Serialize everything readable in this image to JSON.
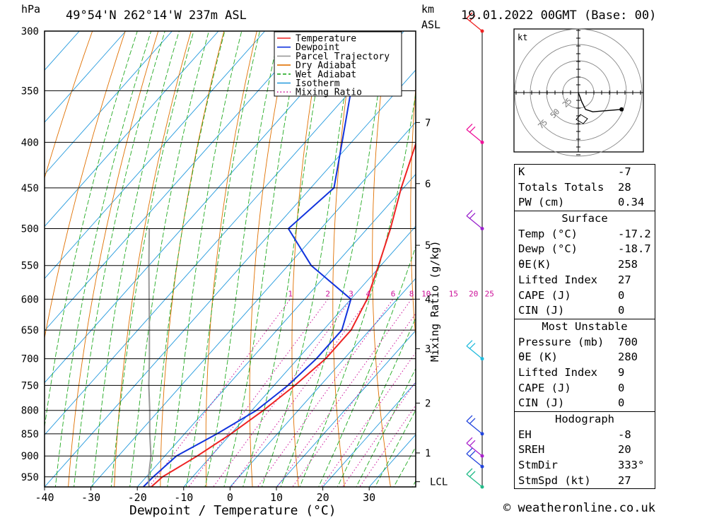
{
  "header": {
    "hpa_unit": "hPa",
    "location": "49°54'N  262°14'W  237m  ASL",
    "km_unit": "km",
    "asl_unit": "ASL",
    "datetime": "19.01.2022  00GMT  (Base: 00)"
  },
  "chart_data": {
    "type": "skew-t log-p",
    "xlabel": "Dewpoint / Temperature (°C)",
    "ylabel_left": "hPa",
    "ylabel_right": "Mixing Ratio (g/kg)",
    "pressure_levels": [
      300,
      350,
      400,
      450,
      500,
      550,
      600,
      650,
      700,
      750,
      800,
      850,
      900,
      950
    ],
    "temperature_ticks": [
      -40,
      -30,
      -20,
      -10,
      0,
      10,
      20,
      30
    ],
    "ylim_hpa": [
      975,
      300
    ],
    "xlim_degC_at_bottom": [
      -40,
      40
    ],
    "height_ticks_km": [
      {
        "label": "7",
        "p": 380
      },
      {
        "label": "6",
        "p": 445
      },
      {
        "label": "5",
        "p": 522
      },
      {
        "label": "4",
        "p": 600
      },
      {
        "label": "3",
        "p": 682
      },
      {
        "label": "2",
        "p": 785
      },
      {
        "label": "1",
        "p": 893
      }
    ],
    "lcl_label": "LCL",
    "lcl_p": 962,
    "mixing_ratio_labels": [
      "1",
      "2",
      "3",
      "4",
      "6",
      "8",
      "10",
      "15",
      "20",
      "25"
    ],
    "mixing_ratio_values": [
      1,
      2,
      3,
      4,
      6,
      8,
      10,
      15,
      20,
      25
    ],
    "mixing_ratio_label_p": 600,
    "legend": [
      {
        "name": "Temperature",
        "color": "#ee2222",
        "style": "solid"
      },
      {
        "name": "Dewpoint",
        "color": "#1133dd",
        "style": "solid"
      },
      {
        "name": "Parcel Trajectory",
        "color": "#999999",
        "style": "solid"
      },
      {
        "name": "Dry Adiabat",
        "color": "#e07000",
        "style": "solid"
      },
      {
        "name": "Wet Adiabat",
        "color": "#22aa22",
        "style": "dashed"
      },
      {
        "name": "Isotherm",
        "color": "#2299dd",
        "style": "solid"
      },
      {
        "name": "Mixing Ratio",
        "color": "#cc1199",
        "style": "dotted"
      }
    ],
    "legend_position": "top-right",
    "series": [
      {
        "name": "Temperature",
        "color": "#ee2222",
        "points": [
          {
            "p": 975,
            "t": -17
          },
          {
            "p": 950,
            "t": -16.5
          },
          {
            "p": 900,
            "t": -13
          },
          {
            "p": 850,
            "t": -10
          },
          {
            "p": 800,
            "t": -7.5
          },
          {
            "p": 750,
            "t": -5.5
          },
          {
            "p": 700,
            "t": -4
          },
          {
            "p": 650,
            "t": -4
          },
          {
            "p": 600,
            "t": -6.5
          },
          {
            "p": 550,
            "t": -10.5
          },
          {
            "p": 500,
            "t": -15
          },
          {
            "p": 450,
            "t": -20.5
          },
          {
            "p": 400,
            "t": -26
          },
          {
            "p": 350,
            "t": -32
          },
          {
            "p": 300,
            "t": -37
          }
        ]
      },
      {
        "name": "Dewpoint",
        "color": "#1133dd",
        "points": [
          {
            "p": 975,
            "t": -18.7
          },
          {
            "p": 950,
            "t": -18.5
          },
          {
            "p": 900,
            "t": -17.5
          },
          {
            "p": 850,
            "t": -13
          },
          {
            "p": 800,
            "t": -9
          },
          {
            "p": 750,
            "t": -7
          },
          {
            "p": 700,
            "t": -6
          },
          {
            "p": 650,
            "t": -6
          },
          {
            "p": 600,
            "t": -10
          },
          {
            "p": 550,
            "t": -25
          },
          {
            "p": 500,
            "t": -37
          },
          {
            "p": 450,
            "t": -35
          },
          {
            "p": 400,
            "t": -42
          },
          {
            "p": 350,
            "t": -50
          },
          {
            "p": 300,
            "t": -56
          }
        ]
      },
      {
        "name": "Parcel Trajectory",
        "color": "#999999",
        "points": [
          {
            "p": 975,
            "t": -17.5
          },
          {
            "p": 950,
            "t": -19.5
          },
          {
            "p": 900,
            "t": -23
          },
          {
            "p": 850,
            "t": -27.5
          },
          {
            "p": 800,
            "t": -32
          },
          {
            "p": 750,
            "t": -37
          },
          {
            "p": 700,
            "t": -42
          },
          {
            "p": 650,
            "t": -47.5
          },
          {
            "p": 600,
            "t": -53.5
          },
          {
            "p": 550,
            "t": -60
          },
          {
            "p": 500,
            "t": -67
          }
        ]
      }
    ],
    "wind_profile": [
      {
        "p": 300,
        "color": "#ee2222"
      },
      {
        "p": 400,
        "color": "#ee1199"
      },
      {
        "p": 500,
        "color": "#9922cc"
      },
      {
        "p": 700,
        "color": "#22bbdd"
      },
      {
        "p": 850,
        "color": "#2244dd"
      },
      {
        "p": 900,
        "color": "#aa22cc"
      },
      {
        "p": 925,
        "color": "#2244dd"
      },
      {
        "p": 975,
        "color": "#22bb88"
      }
    ],
    "hodograph": {
      "unit_label": "kt",
      "ring_labels": [
        "25",
        "50",
        "75"
      ],
      "trace": [
        [
          0,
          0
        ],
        [
          1.5,
          -4
        ],
        [
          3,
          -7
        ],
        [
          6,
          -8
        ],
        [
          18,
          -7
        ]
      ]
    }
  },
  "table": {
    "k_label": "K",
    "k_value": "-7",
    "tt_label": "Totals Totals",
    "tt_value": "28",
    "pw_label": "PW (cm)",
    "pw_value": "0.34",
    "surface": {
      "title": "Surface",
      "temp_label": "Temp (°C)",
      "temp_value": "-17.2",
      "dewp_label": "Dewp (°C)",
      "dewp_value": "-18.7",
      "theta_label": "θE(K)",
      "theta_value": "258",
      "li_label": "Lifted Index",
      "li_value": "27",
      "cape_label": "CAPE (J)",
      "cape_value": "0",
      "cin_label": "CIN (J)",
      "cin_value": "0"
    },
    "most_unstable": {
      "title": "Most Unstable",
      "pressure_label": "Pressure (mb)",
      "pressure_value": "700",
      "theta_label": "θE (K)",
      "theta_value": "280",
      "li_label": "Lifted Index",
      "li_value": "9",
      "cape_label": "CAPE (J)",
      "cape_value": "0",
      "cin_label": "CIN (J)",
      "cin_value": "0"
    },
    "hodograph": {
      "title": "Hodograph",
      "eh_label": "EH",
      "eh_value": "-8",
      "sreh_label": "SREH",
      "sreh_value": "20",
      "stmdir_label": "StmDir",
      "stmdir_value": "333°",
      "stmspd_label": "StmSpd (kt)",
      "stmspd_value": "27"
    }
  },
  "copyright": "© weatheronline.co.uk"
}
